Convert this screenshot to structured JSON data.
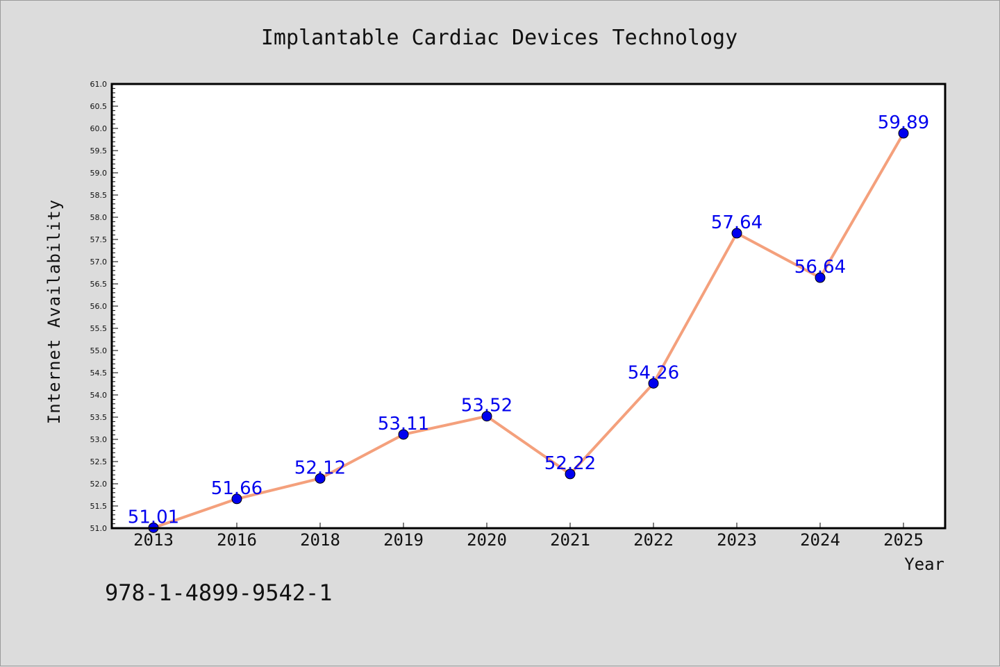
{
  "chart_data": {
    "type": "line",
    "title": "Implantable Cardiac Devices Technology",
    "xlabel": "Year",
    "ylabel": "Internet Availability",
    "categories": [
      "2013",
      "2016",
      "2018",
      "2019",
      "2020",
      "2021",
      "2022",
      "2023",
      "2024",
      "2025"
    ],
    "series": [
      {
        "values": [
          51.01,
          51.66,
          52.12,
          53.11,
          53.52,
          52.22,
          54.26,
          57.64,
          56.64,
          59.89
        ],
        "labels": [
          "51.01",
          "51.66",
          "52.12",
          "53.11",
          "53.52",
          "52.22",
          "54.26",
          "57.64",
          "56.64",
          "59.89"
        ],
        "line_color": "#f4a07c",
        "marker_color": "#0000ee",
        "label_color": "#0000ee"
      }
    ],
    "ylim": [
      51.0,
      61.0
    ],
    "yticks": [
      "51.0",
      "51.5",
      "52.0",
      "52.5",
      "53.0",
      "53.5",
      "54.0",
      "54.5",
      "55.0",
      "55.5",
      "56.0",
      "56.5",
      "57.0",
      "57.5",
      "58.0",
      "58.5",
      "59.0",
      "59.5",
      "60.0",
      "60.5",
      "61.0"
    ],
    "grid": false,
    "legend": "none"
  },
  "footer_text": "978-1-4899-9542-1",
  "colors": {
    "background": "#dcdcdc",
    "plot_background": "#ffffff",
    "axis": "#000000"
  }
}
